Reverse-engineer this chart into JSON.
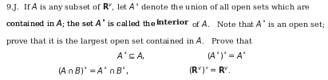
{
  "figsize": [
    4.11,
    1.01
  ],
  "dpi": 100,
  "background_color": "#ffffff",
  "text_color": "#1a1a1a",
  "fs": 6.9
}
